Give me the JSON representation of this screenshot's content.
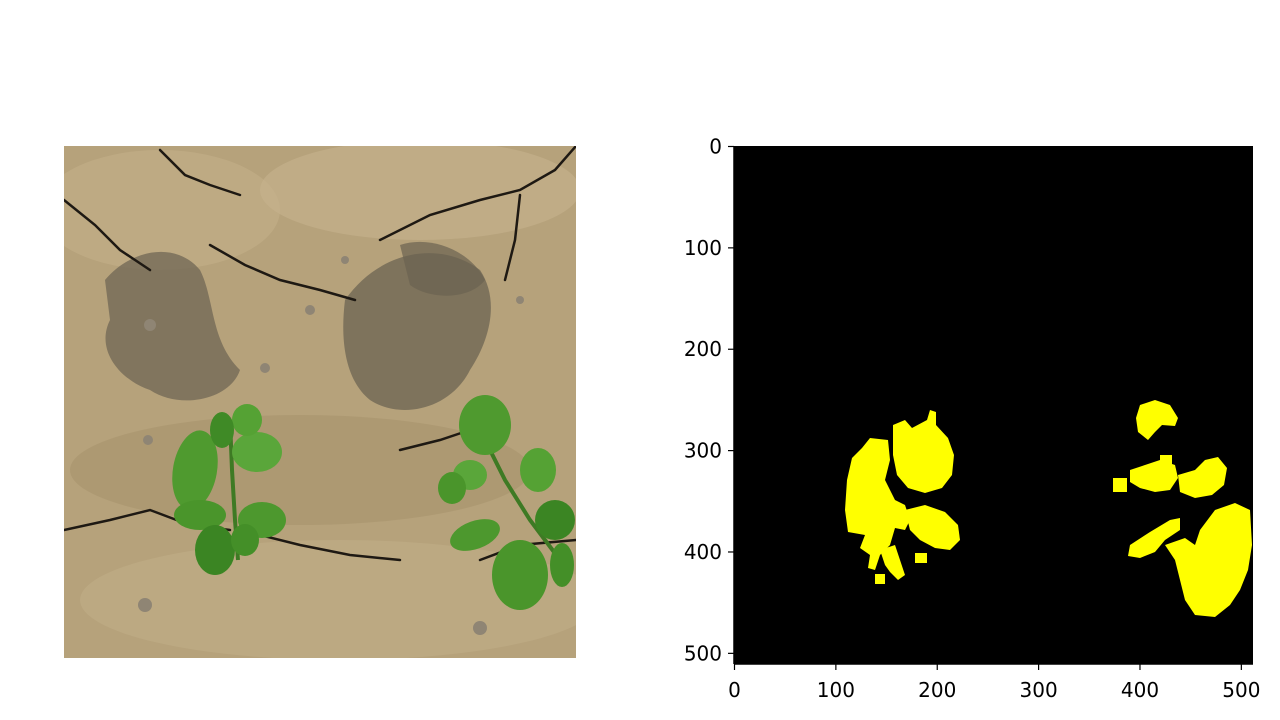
{
  "left_panel": {
    "icon": "soil-with-seedlings-photo",
    "colors": {
      "soil": "#b7a37c",
      "soil_dark": "#6e6553",
      "leaf": "#4f9a2f",
      "leaf_dark": "#2f6a1e",
      "crack": "#1b1712"
    }
  },
  "right_panel": {
    "colors": {
      "background": "#000000",
      "mask": "#ffff00"
    },
    "x_ticks": [
      "0",
      "100",
      "200",
      "300",
      "400",
      "500"
    ],
    "y_ticks": [
      "0",
      "100",
      "200",
      "300",
      "400",
      "500"
    ],
    "xlim": [
      0,
      512
    ],
    "ylim": [
      512,
      0
    ]
  }
}
